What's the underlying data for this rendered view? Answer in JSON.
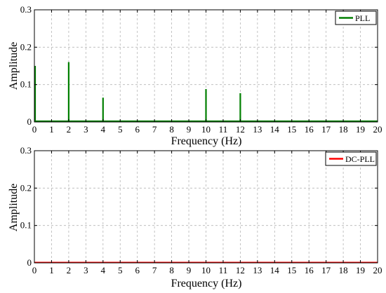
{
  "chart_data": [
    {
      "type": "line",
      "xlabel": "Frequency (Hz)",
      "ylabel": "Amplitude",
      "xlim": [
        0,
        20
      ],
      "ylim": [
        0,
        0.3
      ],
      "xticks": [
        0,
        1,
        2,
        3,
        4,
        5,
        6,
        7,
        8,
        9,
        10,
        11,
        12,
        13,
        14,
        15,
        16,
        17,
        18,
        19,
        20
      ],
      "yticks": [
        0,
        0.1,
        0.2,
        0.3
      ],
      "ytick_labels": [
        "0",
        "0.1",
        "0.2",
        "0.3"
      ],
      "grid": true,
      "legend_position": "top-right",
      "series": [
        {
          "name": "PLL",
          "color": "#007f00",
          "baseline": 0.002,
          "peaks": [
            {
              "x": 0,
              "y": 0.15
            },
            {
              "x": 2,
              "y": 0.16
            },
            {
              "x": 4,
              "y": 0.065
            },
            {
              "x": 10,
              "y": 0.088
            },
            {
              "x": 12,
              "y": 0.077
            }
          ]
        }
      ]
    },
    {
      "type": "line",
      "xlabel": "Frequency (Hz)",
      "ylabel": "Amplitude",
      "xlim": [
        0,
        20
      ],
      "ylim": [
        0,
        0.3
      ],
      "xticks": [
        0,
        1,
        2,
        3,
        4,
        5,
        6,
        7,
        8,
        9,
        10,
        11,
        12,
        13,
        14,
        15,
        16,
        17,
        18,
        19,
        20
      ],
      "yticks": [
        0,
        0.1,
        0.2,
        0.3
      ],
      "ytick_labels": [
        "0",
        "0.1",
        "0.2",
        "0.3"
      ],
      "grid": true,
      "legend_position": "top-right",
      "series": [
        {
          "name": "DC-PLL",
          "color": "#ff0000",
          "baseline": 0.001,
          "peaks": []
        }
      ]
    }
  ]
}
